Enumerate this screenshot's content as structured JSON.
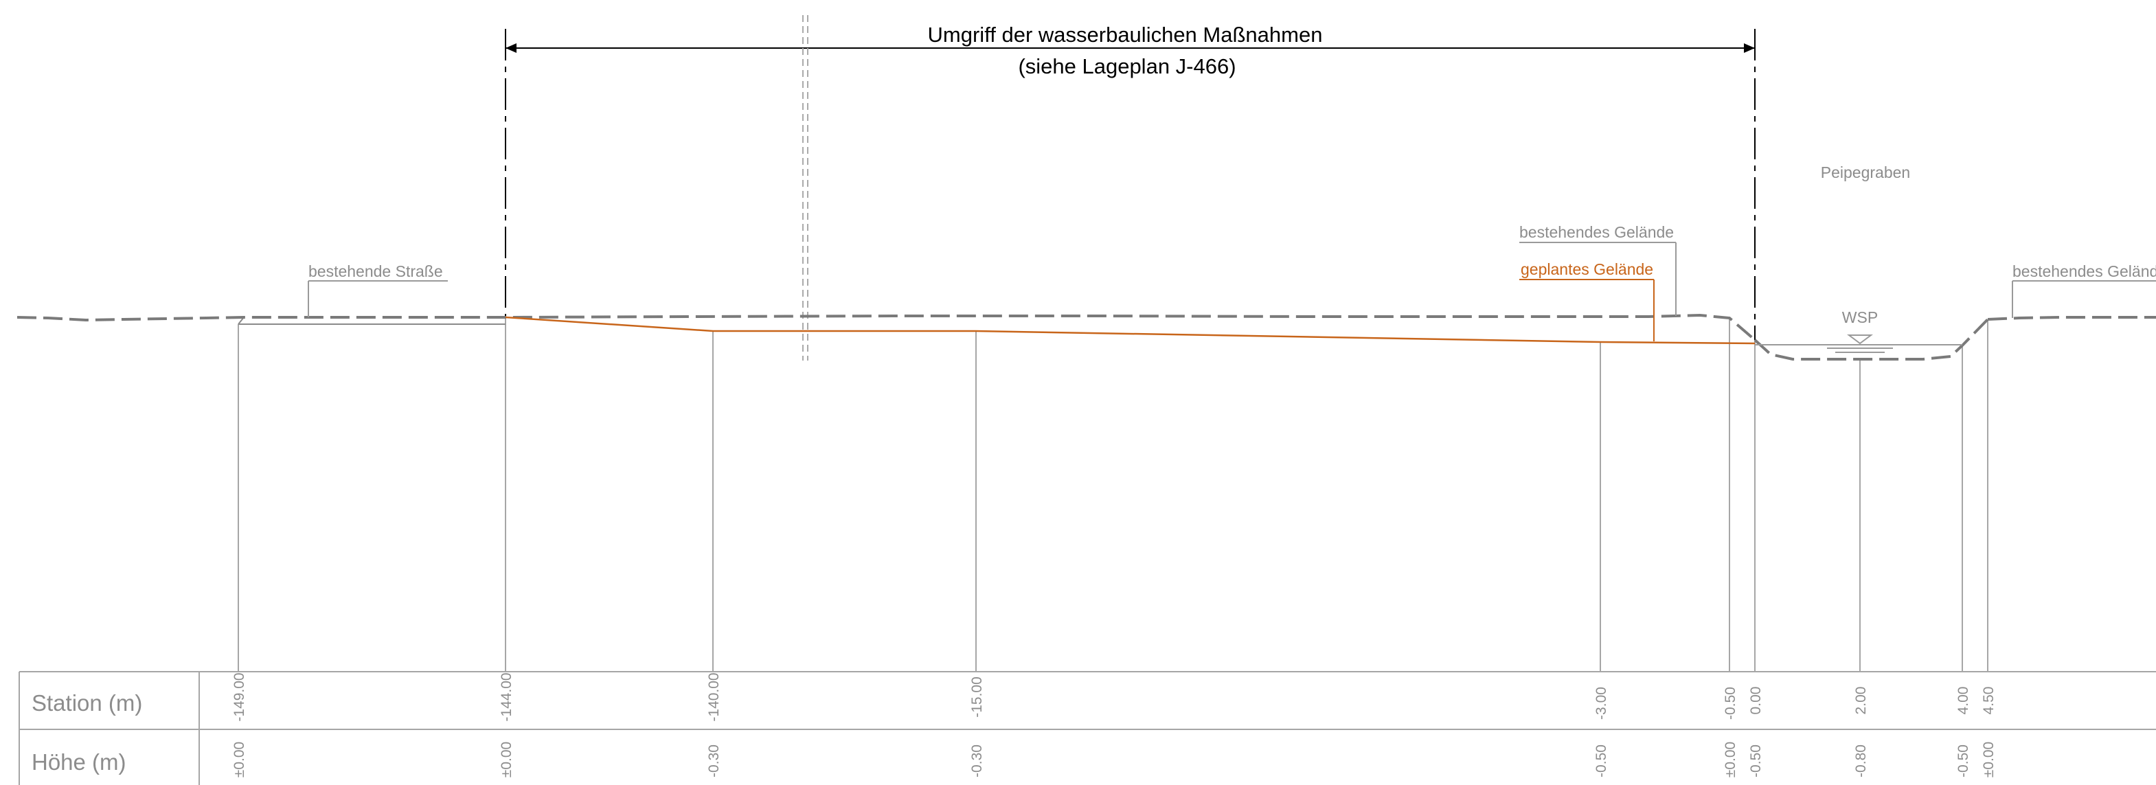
{
  "title": {
    "line1": "Umgriff der wasserbaulichen Maßnahmen",
    "line2": "(siehe Lageplan J-466)"
  },
  "labels": {
    "peipegraben": "Peipegraben",
    "bestehendes_gelaende_1": "bestehendes Gelände",
    "geplantes_gelaende": "geplantes Gelände",
    "bestehende_strasse": "bestehende Straße",
    "wsp": "WSP",
    "bestehendes_gelaende_2": "bestehendes Gelände"
  },
  "table": {
    "station_header": "Station (m)",
    "hoehe_header": "Höhe (m)",
    "columns": [
      {
        "station": "-149.00",
        "hoehe": "±0.00"
      },
      {
        "station": "-144.00",
        "hoehe": "±0.00"
      },
      {
        "station": "-140.00",
        "hoehe": "-0.30"
      },
      {
        "station": "-15.00",
        "hoehe": "-0.30"
      },
      {
        "station": "-3.00",
        "hoehe": "-0.50"
      },
      {
        "station": "-0.50",
        "hoehe": "±0.00"
      },
      {
        "station": "0.00",
        "hoehe": "-0.50"
      },
      {
        "station": "2.00",
        "hoehe": "-0.80"
      },
      {
        "station": "4.00",
        "hoehe": "-0.50"
      },
      {
        "station": "4.50",
        "hoehe": "±0.00"
      }
    ]
  },
  "colors": {
    "planned": "#c8651a",
    "existing": "#7a7a7a",
    "line": "#9a9a9a",
    "text": "#8c8c8c",
    "black": "#000000"
  }
}
